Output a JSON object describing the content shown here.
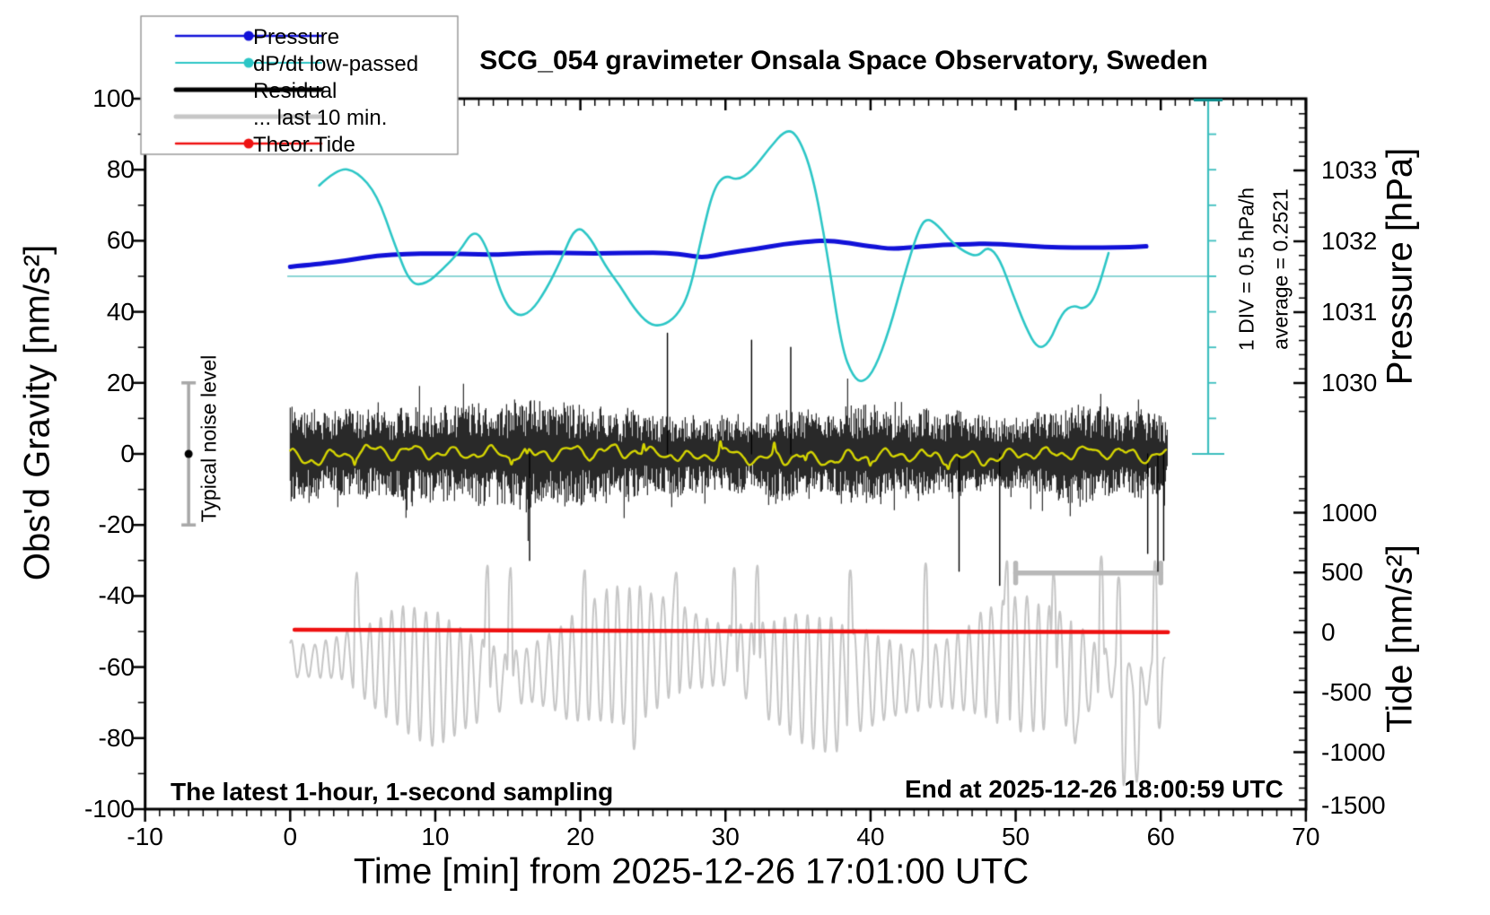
{
  "title": "SCG_054 gravimeter Onsala Space Observatory, Sweden",
  "legend": {
    "items": [
      {
        "label": "Pressure",
        "color": "#1111d8",
        "style": "line-dot",
        "lw": 2.5
      },
      {
        "label": "dP/dt low-passed",
        "color": "#2cc6c6",
        "style": "line-dot",
        "lw": 2.0
      },
      {
        "label": "Residual",
        "color": "#000000",
        "style": "line",
        "lw": 5.0
      },
      {
        "label": "... last 10 min.",
        "color": "#c6c6c6",
        "style": "line",
        "lw": 5.0
      },
      {
        "label": "Theor.Tide",
        "color": "#ee1111",
        "style": "line-dot",
        "lw": 2.5
      }
    ]
  },
  "axes": {
    "x": {
      "label": "Time [min] from 2025-12-26 17:01:00 UTC",
      "range": [
        -10,
        70
      ],
      "major_ticks": [
        -10,
        0,
        10,
        20,
        30,
        40,
        50,
        60,
        70
      ],
      "minor_step": 1
    },
    "gravity": {
      "label": "Obs'd Gravity [nm/s²]",
      "range": [
        -100,
        100
      ],
      "major_ticks": [
        100,
        80,
        60,
        40,
        20,
        0,
        -20,
        -40,
        -60,
        -80,
        -100
      ],
      "minor_step": 10
    },
    "pressure": {
      "label": "Pressure [hPa]",
      "major_ticks": [
        1033,
        1032,
        1031,
        1030
      ],
      "minor_step": 0.2
    },
    "tide": {
      "label": "Tide [nm/s²]",
      "major_ticks": [
        1000,
        500,
        0,
        -500,
        -1000,
        -1500
      ],
      "minor_step": 100
    }
  },
  "annotations": {
    "div_scale": "1 DIV = 0.5 hPa/h",
    "average": "average = 0.2521",
    "noise": "Typical noise level",
    "sampling": "The latest 1-hour, 1-second sampling",
    "end": "End at 2025-12-26 18:00:59 UTC"
  },
  "chart_data": {
    "type": "line",
    "title": "SCG_054 gravimeter Onsala Space Observatory, Sweden",
    "xlabel": "Time [min] from 2025-12-26 17:01:00 UTC",
    "x_range": [
      -10,
      70
    ],
    "gravity_range": [
      -100,
      100
    ],
    "grid": false,
    "legend_position": "top-left",
    "series": [
      {
        "name": "Pressure",
        "units": "hPa",
        "color": "#1111d8",
        "lw": 5,
        "points": [
          [
            0,
            1031.64
          ],
          [
            2,
            1031.68
          ],
          [
            4,
            1031.73
          ],
          [
            6,
            1031.8
          ],
          [
            8,
            1031.82
          ],
          [
            10,
            1031.83
          ],
          [
            12,
            1031.82
          ],
          [
            14,
            1031.81
          ],
          [
            16,
            1031.83
          ],
          [
            18,
            1031.84
          ],
          [
            20,
            1031.83
          ],
          [
            22,
            1031.83
          ],
          [
            24,
            1031.84
          ],
          [
            26,
            1031.84
          ],
          [
            27.5,
            1031.8
          ],
          [
            28.5,
            1031.77
          ],
          [
            30,
            1031.83
          ],
          [
            32,
            1031.89
          ],
          [
            34,
            1031.96
          ],
          [
            36,
            1032.0
          ],
          [
            37,
            1032.01
          ],
          [
            38,
            1031.99
          ],
          [
            40,
            1031.93
          ],
          [
            41.5,
            1031.89
          ],
          [
            43,
            1031.92
          ],
          [
            45,
            1031.95
          ],
          [
            47,
            1031.96
          ],
          [
            48,
            1031.97
          ],
          [
            50,
            1031.95
          ],
          [
            52,
            1031.92
          ],
          [
            54,
            1031.91
          ],
          [
            56,
            1031.91
          ],
          [
            58,
            1031.92
          ],
          [
            59,
            1031.93
          ]
        ]
      },
      {
        "name": "dP/dt low-passed",
        "units": "hPa/h",
        "color": "#2cc6c6",
        "lw": 2.6,
        "average_hpa_per_h": 0.2521,
        "div_hpa_per_h": 0.5,
        "points": [
          [
            2,
            1.53
          ],
          [
            3.3,
            1.78
          ],
          [
            4.6,
            1.73
          ],
          [
            6,
            1.4
          ],
          [
            7.2,
            0.7
          ],
          [
            8.3,
            0.13
          ],
          [
            9.4,
            0.15
          ],
          [
            10.5,
            0.35
          ],
          [
            11.6,
            0.58
          ],
          [
            12.7,
            0.93
          ],
          [
            13.6,
            0.65
          ],
          [
            14.6,
            -0.05
          ],
          [
            15.6,
            -0.32
          ],
          [
            16.6,
            -0.25
          ],
          [
            17.6,
            0.05
          ],
          [
            18.6,
            0.45
          ],
          [
            19.7,
            0.98
          ],
          [
            20.7,
            0.8
          ],
          [
            21.7,
            0.4
          ],
          [
            22.7,
            0.13
          ],
          [
            23.7,
            -0.2
          ],
          [
            24.7,
            -0.42
          ],
          [
            25.6,
            -0.45
          ],
          [
            26.6,
            -0.32
          ],
          [
            27.5,
            0.0
          ],
          [
            28.4,
            0.85
          ],
          [
            29.2,
            1.5
          ],
          [
            30,
            1.68
          ],
          [
            30.8,
            1.6
          ],
          [
            31.8,
            1.73
          ],
          [
            33,
            2.05
          ],
          [
            34.2,
            2.33
          ],
          [
            35,
            2.23
          ],
          [
            36,
            1.7
          ],
          [
            37,
            0.6
          ],
          [
            38,
            -0.75
          ],
          [
            38.8,
            -1.17
          ],
          [
            39.5,
            -1.25
          ],
          [
            40.3,
            -1.05
          ],
          [
            41.3,
            -0.5
          ],
          [
            42.3,
            0.25
          ],
          [
            43.2,
            0.85
          ],
          [
            43.8,
            1.08
          ],
          [
            44.6,
            0.98
          ],
          [
            45.6,
            0.73
          ],
          [
            46.6,
            0.58
          ],
          [
            47.4,
            0.53
          ],
          [
            48.1,
            0.68
          ],
          [
            48.9,
            0.5
          ],
          [
            49.8,
            0.0
          ],
          [
            50.7,
            -0.47
          ],
          [
            51.5,
            -0.77
          ],
          [
            52.3,
            -0.7
          ],
          [
            53.2,
            -0.25
          ],
          [
            54,
            -0.15
          ],
          [
            54.7,
            -0.22
          ],
          [
            55.5,
            -0.05
          ],
          [
            56.4,
            0.58
          ]
        ]
      },
      {
        "name": "Theor.Tide",
        "units": "nm/s2 (tide axis)",
        "color": "#ee1111",
        "lw": 4.5,
        "points": [
          [
            0.3,
            22
          ],
          [
            10,
            18
          ],
          [
            20,
            14
          ],
          [
            30,
            11
          ],
          [
            40,
            8
          ],
          [
            50,
            5
          ],
          [
            60.5,
            2
          ]
        ]
      },
      {
        "name": "Residual",
        "units": "nm/s2 (gravity axis)",
        "color": "#000000",
        "description": "1-second residual noise band around 0",
        "t_range": [
          0,
          60.45
        ],
        "mean": 0,
        "typical_half_amplitude": 14,
        "max_excursion": 37,
        "seed": 20251226,
        "spikes": [
          [
            16.5,
            -30
          ],
          [
            26,
            34
          ],
          [
            31.8,
            32
          ],
          [
            34.5,
            30
          ],
          [
            46.1,
            -33
          ],
          [
            48.9,
            -37
          ],
          [
            59.1,
            -28
          ],
          [
            59.8,
            -33
          ],
          [
            60.2,
            -30
          ]
        ]
      },
      {
        "name": "Residual smoothed",
        "units": "nm/s2 (gravity axis)",
        "color": "#d4d400",
        "description": "low-passed residual drawn over noise band",
        "t_range": [
          0,
          60.4
        ],
        "mean": -0.3,
        "wiggle_amplitude": 3,
        "seed": 99
      },
      {
        "name": "Residual last 10 min (stretched)",
        "units": "nm/s2 (tide axis)",
        "color": "#c6c6c6",
        "t_range": [
          0,
          60.35
        ],
        "mean": -320,
        "osc_period_min": 0.78,
        "typical_peak": 340,
        "typical_dip": -930,
        "seed": 7,
        "deep_dips": [
          [
            23.7,
            -1000
          ],
          [
            54.1,
            -950
          ],
          [
            57.45,
            -1310
          ],
          [
            58.35,
            -1280
          ],
          [
            59.9,
            -820
          ]
        ],
        "tall_peaks": [
          [
            4.6,
            520
          ],
          [
            13.6,
            580
          ],
          [
            15.2,
            560
          ],
          [
            20.3,
            540
          ],
          [
            26.6,
            520
          ],
          [
            30.6,
            560
          ],
          [
            32.2,
            580
          ],
          [
            38.6,
            540
          ],
          [
            43.8,
            600
          ],
          [
            49.4,
            620
          ],
          [
            52.6,
            520
          ],
          [
            55.9,
            660
          ],
          [
            57.1,
            480
          ],
          [
            59.6,
            620
          ]
        ]
      }
    ],
    "reference_marks": {
      "avg_line_gravity_level": 50,
      "div_bar": {
        "x_min": 63.3,
        "divisions": 10,
        "div_value_hpa_per_h": 0.5
      },
      "noise_errorbar": {
        "t": -7,
        "range_gravity": [
          -20,
          20
        ],
        "dot_at": 0
      },
      "last10_bracket": {
        "t_span": [
          50,
          60
        ],
        "gravity_level": -33.5
      }
    },
    "colors": {
      "avg_line": "#8cd6d6",
      "div_bar": "#3cbebe",
      "div_bar_cap": "#0a8a8a",
      "bracket": "#b8b8b8",
      "errorbar": "#a8a8a8"
    }
  }
}
